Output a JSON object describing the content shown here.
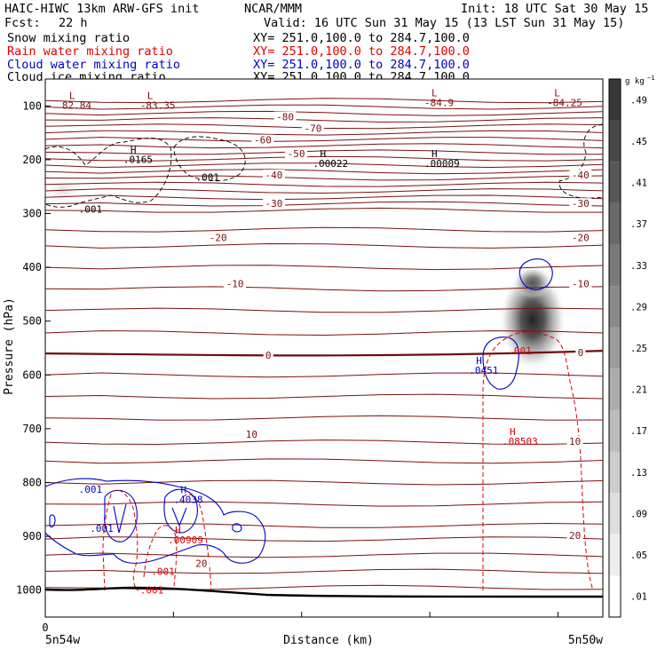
{
  "header": {
    "title_left": "HAIC-HIWC 13km ARW-GFS init",
    "title_mid": "NCAR/MMM",
    "init": "Init: 18 UTC Sat 30 May 15",
    "fcst_label": "Fcst:",
    "fcst_value": "22 h",
    "valid": "Valid: 16 UTC Sun 31 May 15 (13 LST Sun 31 May 15)"
  },
  "fields": [
    {
      "name": "Snow mixing ratio",
      "xy": "XY= 251.0,100.0 to 284.7,100.0",
      "color": "#000000"
    },
    {
      "name": "Rain water mixing ratio",
      "xy": "XY= 251.0,100.0 to 284.7,100.0",
      "color": "#e00000"
    },
    {
      "name": "Cloud water mixing ratio",
      "xy": "XY= 251.0,100.0 to 284.7,100.0",
      "color": "#0000c8"
    },
    {
      "name": "Cloud ice mixing ratio",
      "xy": "XY= 251.0,100.0 to 284.7,100.0",
      "color": "#000000"
    }
  ],
  "chart_data": {
    "type": "cross-section",
    "ylabel": "Pressure (hPa)",
    "xlabel": "Distance (km)",
    "ylim": [
      1050,
      50
    ],
    "yticks": [
      100,
      200,
      300,
      400,
      500,
      600,
      700,
      800,
      900,
      1000
    ],
    "x_tick_zero": "0",
    "x_left_label": "5n54w",
    "x_right_label": "5n50w",
    "colorbar": {
      "unit": "g kg",
      "unit_exp": "−1",
      "ticks": [
        ".01",
        ".05",
        ".09",
        ".13",
        ".17",
        ".21",
        ".25",
        ".29",
        ".33",
        ".37",
        ".41",
        ".45",
        ".49"
      ]
    },
    "temperature_contour_labels": [
      {
        "label": "-80",
        "p": 122,
        "x": 0.43
      },
      {
        "label": "-70",
        "p": 143,
        "x": 0.48
      },
      {
        "label": "-60",
        "p": 165,
        "x": 0.39
      },
      {
        "label": "-50",
        "p": 190,
        "x": 0.45
      },
      {
        "label": "-40",
        "p": 230,
        "x": 0.41
      },
      {
        "label": "-40",
        "p": 230,
        "x": 0.96
      },
      {
        "label": "-30",
        "p": 283,
        "x": 0.41
      },
      {
        "label": "-30",
        "p": 283,
        "x": 0.96
      },
      {
        "label": "-20",
        "p": 346,
        "x": 0.31
      },
      {
        "label": "-20",
        "p": 346,
        "x": 0.96
      },
      {
        "label": "-10",
        "p": 432,
        "x": 0.34
      },
      {
        "label": "-10",
        "p": 432,
        "x": 0.96
      },
      {
        "label": "0",
        "p": 565,
        "x": 0.4
      },
      {
        "label": "0",
        "p": 560,
        "x": 0.96
      },
      {
        "label": "10",
        "p": 712,
        "x": 0.37
      },
      {
        "label": "10",
        "p": 725,
        "x": 0.95
      },
      {
        "label": "20",
        "p": 952,
        "x": 0.28
      },
      {
        "label": "20",
        "p": 900,
        "x": 0.95
      }
    ],
    "extrema_labels": [
      {
        "kind": "L",
        "value": "82.84",
        "p": 87,
        "x": 0.03,
        "color": "#7a1010"
      },
      {
        "kind": "L",
        "value": "-83.35",
        "p": 87,
        "x": 0.17,
        "color": "#7a1010"
      },
      {
        "kind": "L",
        "value": "-84.9",
        "p": 82,
        "x": 0.68,
        "color": "#7a1010"
      },
      {
        "kind": "L",
        "value": "-84.25",
        "p": 82,
        "x": 0.9,
        "color": "#7a1010"
      },
      {
        "kind": "H",
        "value": ".0165",
        "p": 188,
        "x": 0.14,
        "color": "#000000"
      },
      {
        "kind": "H",
        "value": ".00022",
        "p": 195,
        "x": 0.48,
        "color": "#000000"
      },
      {
        "kind": "H",
        "value": ".00009",
        "p": 195,
        "x": 0.68,
        "color": "#000000"
      },
      {
        "kind": "H",
        "value": ".0451",
        "p": 580,
        "x": 0.76,
        "color": "#0000c8"
      },
      {
        "kind": "H",
        "value": ".4038",
        "p": 820,
        "x": 0.23,
        "color": "#0000c8"
      },
      {
        "kind": "H",
        "value": ".00909",
        "p": 895,
        "x": 0.22,
        "color": "#e00000"
      },
      {
        "kind": "H",
        "value": ".08503",
        "p": 712,
        "x": 0.82,
        "color": "#e00000"
      }
    ],
    "contour_value_labels": [
      {
        "value": ".001",
        "p": 232,
        "x": 0.27,
        "color": "#000000"
      },
      {
        "value": ".001",
        "p": 292,
        "x": 0.06,
        "color": "#000000"
      },
      {
        "value": ".001",
        "p": 812,
        "x": 0.06,
        "color": "#0000c8"
      },
      {
        "value": ".001",
        "p": 885,
        "x": 0.08,
        "color": "#0000c8"
      },
      {
        "value": ".001",
        "p": 965,
        "x": 0.19,
        "color": "#e00000"
      },
      {
        "value": ".001",
        "p": 1000,
        "x": 0.17,
        "color": "#e00000"
      },
      {
        "value": ".001",
        "p": 555,
        "x": 0.83,
        "color": "#e00000"
      }
    ]
  }
}
